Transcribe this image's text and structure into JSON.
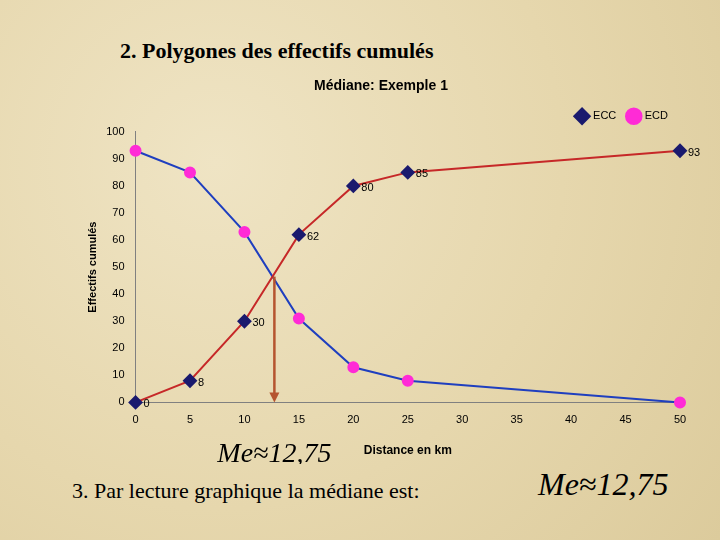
{
  "heading": "2. Polygones des effectifs cumulés",
  "footer": {
    "text": "3. Par lecture graphique la médiane est:",
    "value": "Me≈12,75"
  },
  "chart_data": {
    "type": "line",
    "title": "Médiane: Exemple 1",
    "x_label": "Distance en km",
    "y_label": "Effectifs cumulés",
    "x": [
      0,
      5,
      10,
      15,
      20,
      25,
      50
    ],
    "series": [
      {
        "name": "ECC",
        "color": "#c62828",
        "marker": "diamond",
        "line_style": "solid",
        "data_labels": true,
        "values": [
          0,
          8,
          30,
          62,
          80,
          85,
          93
        ]
      },
      {
        "name": "ECD",
        "color": "#1f3fbf",
        "marker": "circle",
        "line_style": "solid",
        "values": [
          93,
          85,
          63,
          31,
          13,
          8,
          0
        ]
      }
    ],
    "xlim": [
      0,
      50
    ],
    "xticks": [
      0,
      5,
      10,
      15,
      20,
      25,
      30,
      35,
      40,
      45,
      50
    ],
    "ylim": [
      0,
      100
    ],
    "yticks": [
      0,
      10,
      20,
      30,
      40,
      50,
      60,
      70,
      80,
      90,
      100
    ],
    "grid": false,
    "legend": "top-right",
    "annotations": [
      {
        "text": "Me≈12,75",
        "x": 12.75,
        "y": 46.5
      }
    ]
  }
}
